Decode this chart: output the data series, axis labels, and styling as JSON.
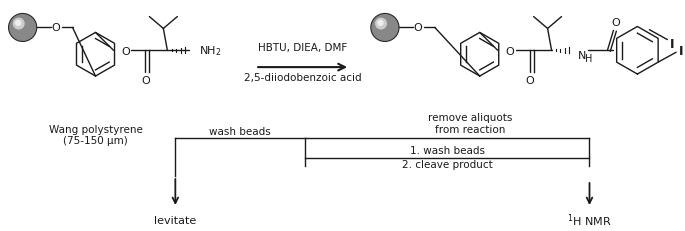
{
  "fig_width": 6.85,
  "fig_height": 2.32,
  "dpi": 100,
  "bg_color": "#ffffff",
  "lc": "#1a1a1a",
  "lw": 1.0,
  "reaction_line1": "HBTU, DIEA, DMF",
  "reaction_line2": "2,5-diiodobenzoic acid",
  "label_wang": "Wang polystyrene",
  "label_wang2": "(75-150 μm)",
  "label_remove1": "remove aliquots",
  "label_remove2": "from reaction",
  "label_wash_left": "wash beads",
  "label_wash_right": "1. wash beads",
  "label_cleave": "2. cleave product",
  "label_levitate": "levitate",
  "label_hnmr": "$^{1}$H NMR"
}
